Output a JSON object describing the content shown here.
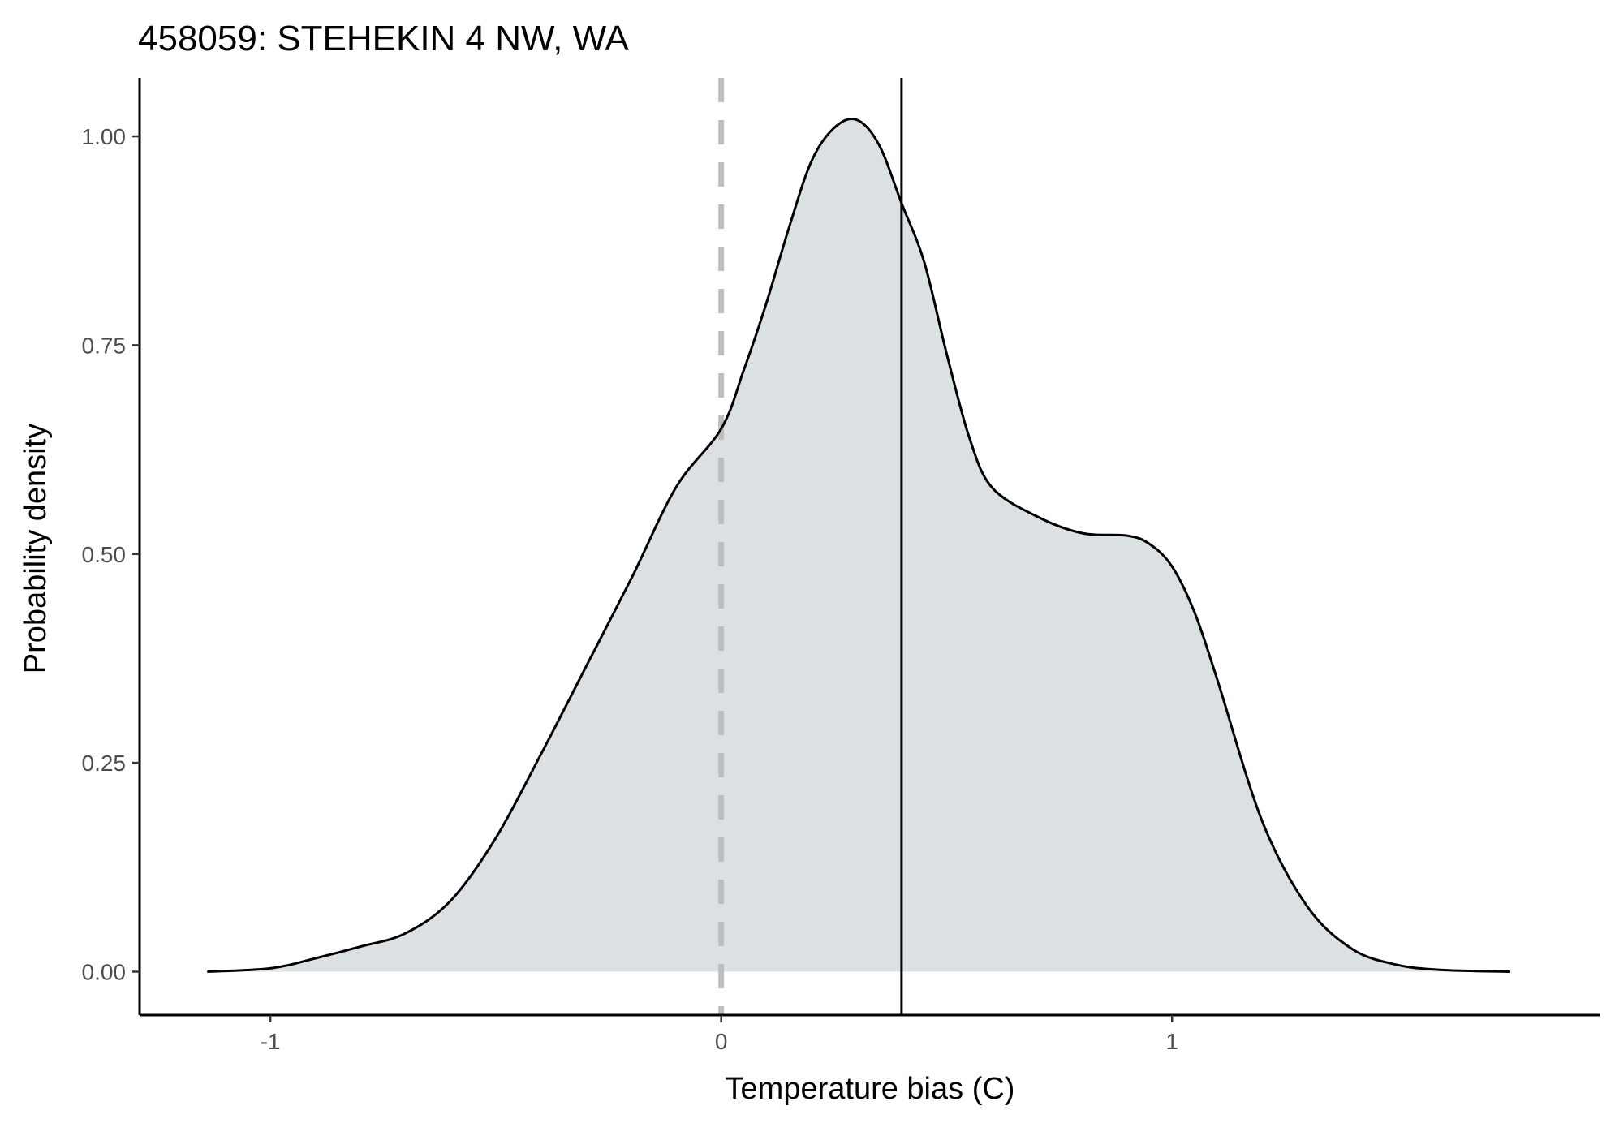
{
  "chart_data": {
    "type": "area",
    "title": "458059: STEHEKIN 4 NW, WA",
    "xlabel": "Temperature bias (C)",
    "ylabel": "Probability density",
    "xlim": [
      -1.29,
      1.95
    ],
    "ylim": [
      -0.052,
      1.07
    ],
    "x_ticks": [
      -1,
      0,
      1
    ],
    "x_tick_labels": [
      "-1",
      "0",
      "1"
    ],
    "y_ticks": [
      0,
      0.25,
      0.5,
      0.75,
      1.0
    ],
    "y_tick_labels": [
      "0.00",
      "0.25",
      "0.50",
      "0.75",
      "1.00"
    ],
    "grid": false,
    "legend": "none",
    "reference_lines": [
      {
        "x": 0,
        "style": "dashed",
        "color": "#bebebe"
      },
      {
        "x": 0.4,
        "style": "solid",
        "color": "#000000"
      }
    ],
    "fill_color": "#dbe0e3",
    "line_color": "#000000",
    "density": {
      "x": [
        -1.14,
        -1.0,
        -0.9,
        -0.8,
        -0.7,
        -0.6,
        -0.5,
        -0.4,
        -0.3,
        -0.2,
        -0.1,
        0.0,
        0.05,
        0.1,
        0.15,
        0.2,
        0.25,
        0.3,
        0.35,
        0.4,
        0.45,
        0.5,
        0.55,
        0.6,
        0.7,
        0.8,
        0.9,
        0.95,
        1.0,
        1.05,
        1.1,
        1.2,
        1.3,
        1.4,
        1.5,
        1.6,
        1.7,
        1.75
      ],
      "y": [
        0.0,
        0.004,
        0.016,
        0.03,
        0.046,
        0.085,
        0.16,
        0.26,
        0.365,
        0.47,
        0.58,
        0.65,
        0.72,
        0.8,
        0.89,
        0.97,
        1.01,
        1.02,
        0.99,
        0.92,
        0.85,
        0.74,
        0.64,
        0.58,
        0.545,
        0.525,
        0.522,
        0.512,
        0.485,
        0.43,
        0.35,
        0.18,
        0.078,
        0.027,
        0.008,
        0.002,
        0.0005,
        0.0
      ]
    }
  }
}
